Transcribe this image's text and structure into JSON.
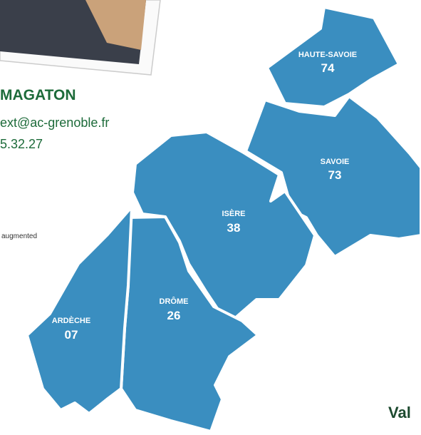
{
  "header": {
    "name": "MAGATON",
    "email": "ext@ac-grenoble.fr",
    "phone": "5.32.27",
    "note": "augmented"
  },
  "map": {
    "regions": [
      {
        "label": "HAUTE-SAVOIE",
        "code": "74"
      },
      {
        "label": "SAVOIE",
        "code": "73"
      },
      {
        "label": "ISÈRE",
        "code": "38"
      },
      {
        "label": "DRÔME",
        "code": "26"
      },
      {
        "label": "ARDÈCHE",
        "code": "07"
      }
    ]
  },
  "footer": {
    "title": "Val"
  }
}
